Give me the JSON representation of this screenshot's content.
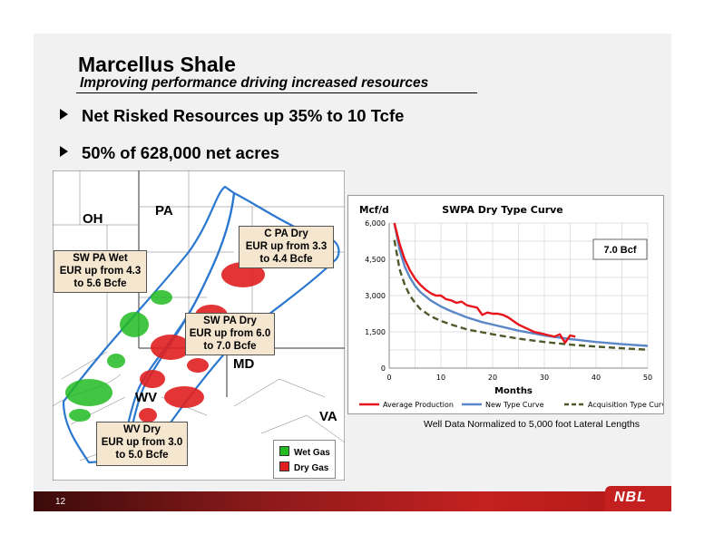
{
  "slide": {
    "title": "Marcellus Shale",
    "subtitle": "Improving performance driving increased resources",
    "bullets": [
      "Net Risked Resources up 35% to 10 Tcfe",
      "50% of 628,000 net acres"
    ],
    "page_number": "12",
    "logo": "NBL"
  },
  "map": {
    "states": [
      "OH",
      "PA",
      "MD",
      "WV",
      "VA"
    ],
    "callouts": {
      "c_pa": [
        "C PA Dry",
        "EUR up from 3.3",
        "to 4.4 Bcfe"
      ],
      "sw_pa_wet": [
        "SW PA Wet",
        "EUR up from 4.3",
        "to 5.6 Bcfe"
      ],
      "sw_pa_dry": [
        "SW PA Dry",
        "EUR up from 6.0",
        "to 7.0 Bcfe"
      ],
      "wv_dry": [
        "WV Dry",
        "EUR up from 3.0",
        "to 5.0 Bcfe"
      ]
    },
    "legend": [
      {
        "label": "Wet Gas",
        "color": "#22bb22"
      },
      {
        "label": "Dry Gas",
        "color": "#e02020"
      }
    ]
  },
  "chart_note": "Well Data Normalized to 5,000 foot Lateral Lengths",
  "chart_data": {
    "type": "line",
    "title": "SWPA Dry Type Curve",
    "ylabel": "Mcf/d",
    "xlabel": "Months",
    "xlim": [
      0,
      50
    ],
    "ylim": [
      0,
      6000
    ],
    "xticks": [
      "0",
      "10",
      "20",
      "30",
      "40",
      "50"
    ],
    "yticks": [
      "0",
      "1,500",
      "3,000",
      "4,500",
      "6,000"
    ],
    "grid": true,
    "legend_position": "bottom",
    "annotation": "7.0 Bcf",
    "series": [
      {
        "name": "Average Production",
        "color": "#e8141c",
        "style": "solid",
        "x": [
          1,
          2,
          3,
          4,
          5,
          6,
          7,
          8,
          9,
          10,
          11,
          12,
          13,
          14,
          15,
          16,
          17,
          18,
          19,
          20,
          21,
          22,
          23,
          24,
          25,
          26,
          27,
          28,
          29,
          30,
          31,
          32,
          33,
          34,
          35,
          36
        ],
        "y": [
          6000,
          5150,
          4500,
          4050,
          3700,
          3450,
          3250,
          3100,
          3000,
          3000,
          2850,
          2800,
          2700,
          2750,
          2600,
          2550,
          2500,
          2200,
          2300,
          2250,
          2250,
          2200,
          2100,
          1950,
          1800,
          1700,
          1600,
          1500,
          1450,
          1400,
          1350,
          1300,
          1400,
          1050,
          1350,
          1300
        ]
      },
      {
        "name": "New Type Curve",
        "color": "#5b87c8",
        "style": "solid",
        "x": [
          1,
          2,
          3,
          4,
          5,
          6,
          8,
          10,
          12,
          15,
          18,
          20,
          25,
          30,
          35,
          40,
          45,
          50
        ],
        "y": [
          6000,
          4900,
          4200,
          3750,
          3400,
          3150,
          2800,
          2550,
          2350,
          2100,
          1900,
          1800,
          1550,
          1350,
          1200,
          1080,
          990,
          920
        ]
      },
      {
        "name": "Acquisition Type Curve",
        "color": "#4e5a2a",
        "style": "dashed",
        "x": [
          1,
          2,
          3,
          4,
          5,
          6,
          8,
          10,
          12,
          15,
          18,
          20,
          25,
          30,
          35,
          40,
          45,
          50
        ],
        "y": [
          5300,
          4100,
          3450,
          3000,
          2700,
          2450,
          2150,
          1950,
          1800,
          1600,
          1480,
          1400,
          1220,
          1080,
          970,
          890,
          820,
          760
        ]
      }
    ]
  }
}
